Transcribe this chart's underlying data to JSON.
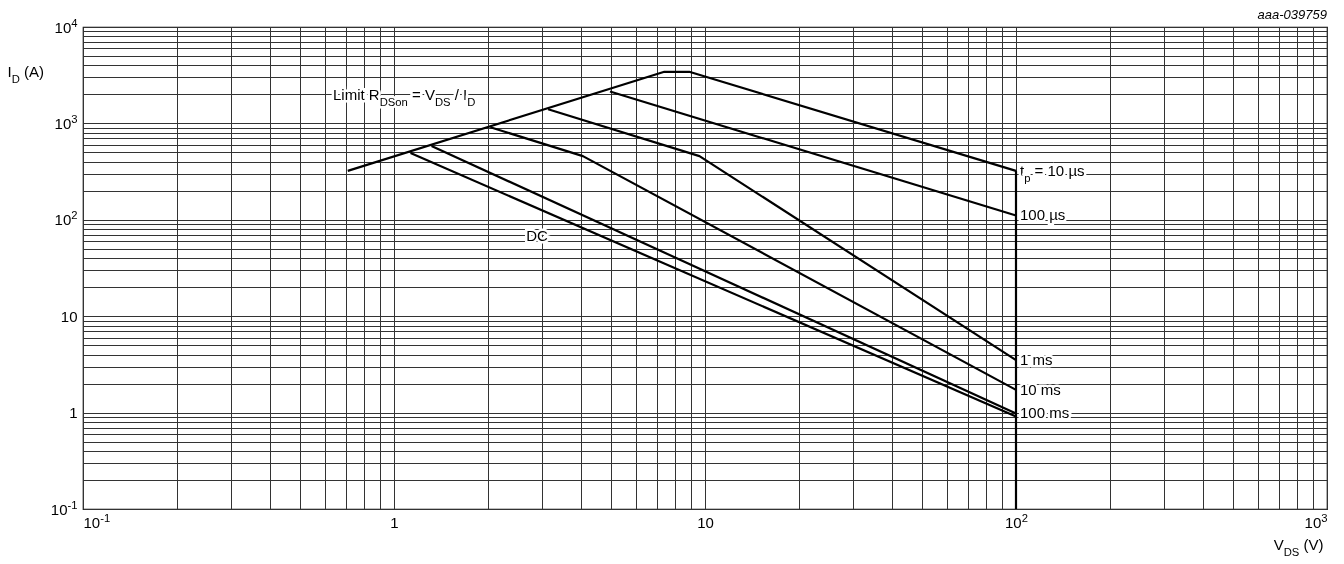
{
  "chart_data": {
    "type": "line",
    "xlabel": "V$_{DS}$ (V)",
    "ylabel": "I$_{D}$ (A)",
    "log": "xy",
    "grid": true,
    "line_style": "solid",
    "marker": "none",
    "xlim": [
      0.1,
      1000
    ],
    "ylim": [
      0.1,
      10000
    ],
    "xticks": [
      {
        "value": 0.1,
        "label": "10$^{-1}$"
      },
      {
        "value": 0.2,
        "label": null
      },
      {
        "value": 0.3,
        "label": null
      },
      {
        "value": 0.4,
        "label": null
      },
      {
        "value": 0.5,
        "label": null
      },
      {
        "value": 0.6,
        "label": null
      },
      {
        "value": 0.7,
        "label": null
      },
      {
        "value": 0.8,
        "label": null
      },
      {
        "value": 0.9,
        "label": null
      },
      1,
      {
        "value": 2,
        "label": null
      },
      {
        "value": 3,
        "label": null
      },
      {
        "value": 4,
        "label": null
      },
      {
        "value": 5,
        "label": null
      },
      {
        "value": 6,
        "label": null
      },
      {
        "value": 7,
        "label": null
      },
      {
        "value": 8,
        "label": null
      },
      {
        "value": 9,
        "label": null
      },
      10,
      {
        "value": 20,
        "label": null
      },
      {
        "value": 30,
        "label": null
      },
      {
        "value": 40,
        "label": null
      },
      {
        "value": 50,
        "label": null
      },
      {
        "value": 60,
        "label": null
      },
      {
        "value": 70,
        "label": null
      },
      {
        "value": 80,
        "label": null
      },
      {
        "value": 90,
        "label": null
      },
      {
        "value": 100,
        "label": "10$^{2}$"
      },
      {
        "value": 200,
        "label": null
      },
      {
        "value": 300,
        "label": null
      },
      {
        "value": 400,
        "label": null
      },
      {
        "value": 500,
        "label": null
      },
      {
        "value": 600,
        "label": null
      },
      {
        "value": 700,
        "label": null
      },
      {
        "value": 800,
        "label": null
      },
      {
        "value": 900,
        "label": null
      },
      {
        "value": 1000,
        "label": "10$^{3}$"
      }
    ],
    "yticks": [
      {
        "value": 0.1,
        "label": "10$^{-1}$"
      },
      {
        "value": 0.2,
        "label": null
      },
      {
        "value": 0.3,
        "label": null
      },
      {
        "value": 0.4,
        "label": null
      },
      {
        "value": 0.5,
        "label": null
      },
      {
        "value": 0.6,
        "label": null
      },
      {
        "value": 0.7,
        "label": null
      },
      {
        "value": 0.8,
        "label": null
      },
      {
        "value": 0.9,
        "label": null
      },
      1,
      {
        "value": 2,
        "label": null
      },
      {
        "value": 3,
        "label": null
      },
      {
        "value": 4,
        "label": null
      },
      {
        "value": 5,
        "label": null
      },
      {
        "value": 6,
        "label": null
      },
      {
        "value": 7,
        "label": null
      },
      {
        "value": 8,
        "label": null
      },
      {
        "value": 9,
        "label": null
      },
      10,
      {
        "value": 20,
        "label": null
      },
      {
        "value": 30,
        "label": null
      },
      {
        "value": 40,
        "label": null
      },
      {
        "value": 50,
        "label": null
      },
      {
        "value": 60,
        "label": null
      },
      {
        "value": 70,
        "label": null
      },
      {
        "value": 80,
        "label": null
      },
      {
        "value": 90,
        "label": null
      },
      {
        "value": 100,
        "label": "10$^{2}$"
      },
      {
        "value": 200,
        "label": null
      },
      {
        "value": 300,
        "label": null
      },
      {
        "value": 400,
        "label": null
      },
      {
        "value": 500,
        "label": null
      },
      {
        "value": 600,
        "label": null
      },
      {
        "value": 700,
        "label": null
      },
      {
        "value": 800,
        "label": null
      },
      {
        "value": 900,
        "label": null
      },
      {
        "value": 1000,
        "label": "10$^{3}$"
      },
      {
        "value": 2000,
        "label": null
      },
      {
        "value": 3000,
        "label": null
      },
      {
        "value": 4000,
        "label": null
      },
      {
        "value": 5000,
        "label": null
      },
      {
        "value": 6000,
        "label": null
      },
      {
        "value": 7000,
        "label": null
      },
      {
        "value": 8000,
        "label": null
      },
      {
        "value": 9000,
        "label": null
      },
      {
        "value": 10000,
        "label": "10$^{4}$"
      }
    ],
    "series": [
      {
        "name": "t$_{p}$ = 10 µs",
        "color": "#000000",
        "x": [
          0.71,
          7.4,
          8.9,
          100
        ],
        "values": [
          322,
          3430,
          3430,
          322
        ]
      },
      {
        "name": "100 µs",
        "color": "#000000",
        "x": [
          4.95,
          100
        ],
        "values": [
          2140,
          111
        ]
      },
      {
        "name": "1 ms",
        "color": "#000000",
        "x": [
          3.13,
          9.6,
          100
        ],
        "values": [
          1400,
          458,
          3.5
        ]
      },
      {
        "name": "10 ms",
        "color": "#000000",
        "x": [
          2.04,
          4.05,
          100
        ],
        "values": [
          912,
          458,
          1.72
        ]
      },
      {
        "name": "100 ms",
        "color": "#000000",
        "x": [
          1.32,
          100
        ],
        "values": [
          582,
          0.98
        ]
      },
      {
        "color": "#000000",
        "x": [
          1.13,
          100
        ],
        "values": [
          492,
          0.91
        ]
      },
      {
        "color": "#000000",
        "x": [
          100,
          100
        ],
        "values": [
          322,
          0.1
        ]
      }
    ],
    "annotations": [
      "Limit R$_{DSon}$ = V$_{DS}$ / I$_{D}$",
      "DC",
      "aaa-039759"
    ]
  }
}
